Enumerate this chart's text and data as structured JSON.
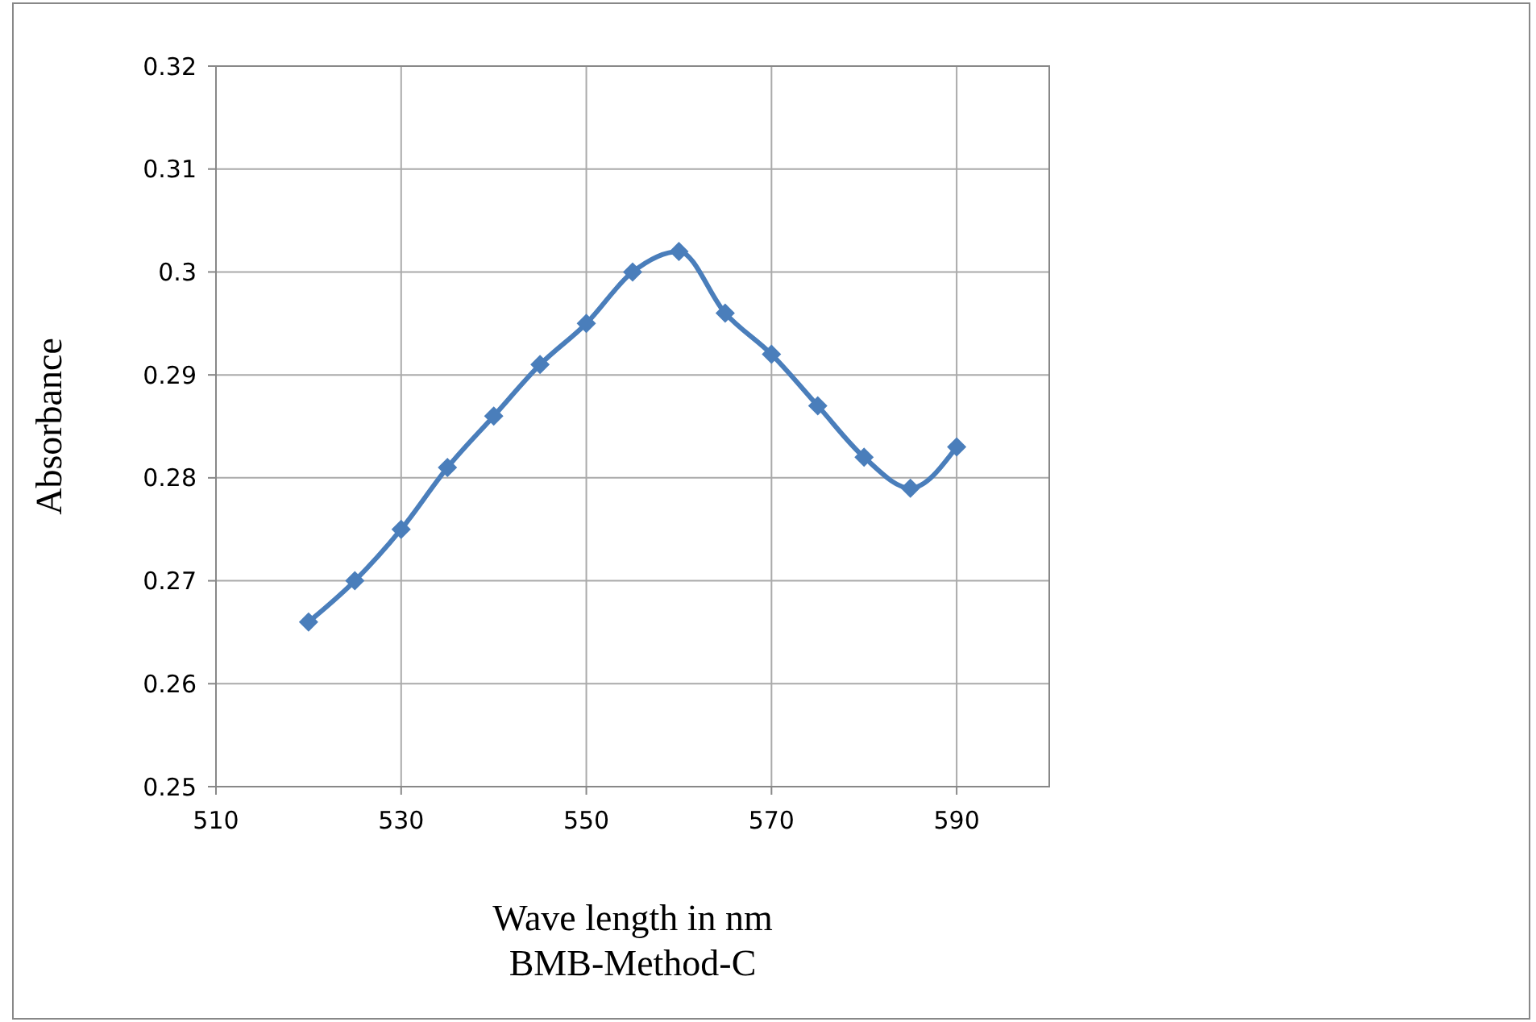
{
  "chart_data": {
    "type": "line",
    "xlabel": "Wave length in nm",
    "ylabel": "Absorbance",
    "annotations": [
      "BMB-Method-C"
    ],
    "x": [
      520,
      525,
      530,
      535,
      540,
      545,
      550,
      555,
      560,
      565,
      570,
      575,
      580,
      585,
      590
    ],
    "series": [
      {
        "color": "#4a7ebb",
        "values": [
          0.266,
          0.27,
          0.275,
          0.281,
          0.286,
          0.291,
          0.295,
          0.3,
          0.302,
          0.296,
          0.292,
          0.287,
          0.282,
          0.279,
          0.283
        ]
      }
    ],
    "xlim": [
      510,
      600
    ],
    "xticks": [
      510,
      530,
      550,
      570,
      590
    ],
    "ylim": [
      0.25,
      0.32
    ],
    "yticks": [
      0.25,
      0.26,
      0.27,
      0.28,
      0.29,
      0.3,
      0.31,
      0.32
    ],
    "grid": true,
    "marker": "diamond",
    "line_style": "solid"
  }
}
